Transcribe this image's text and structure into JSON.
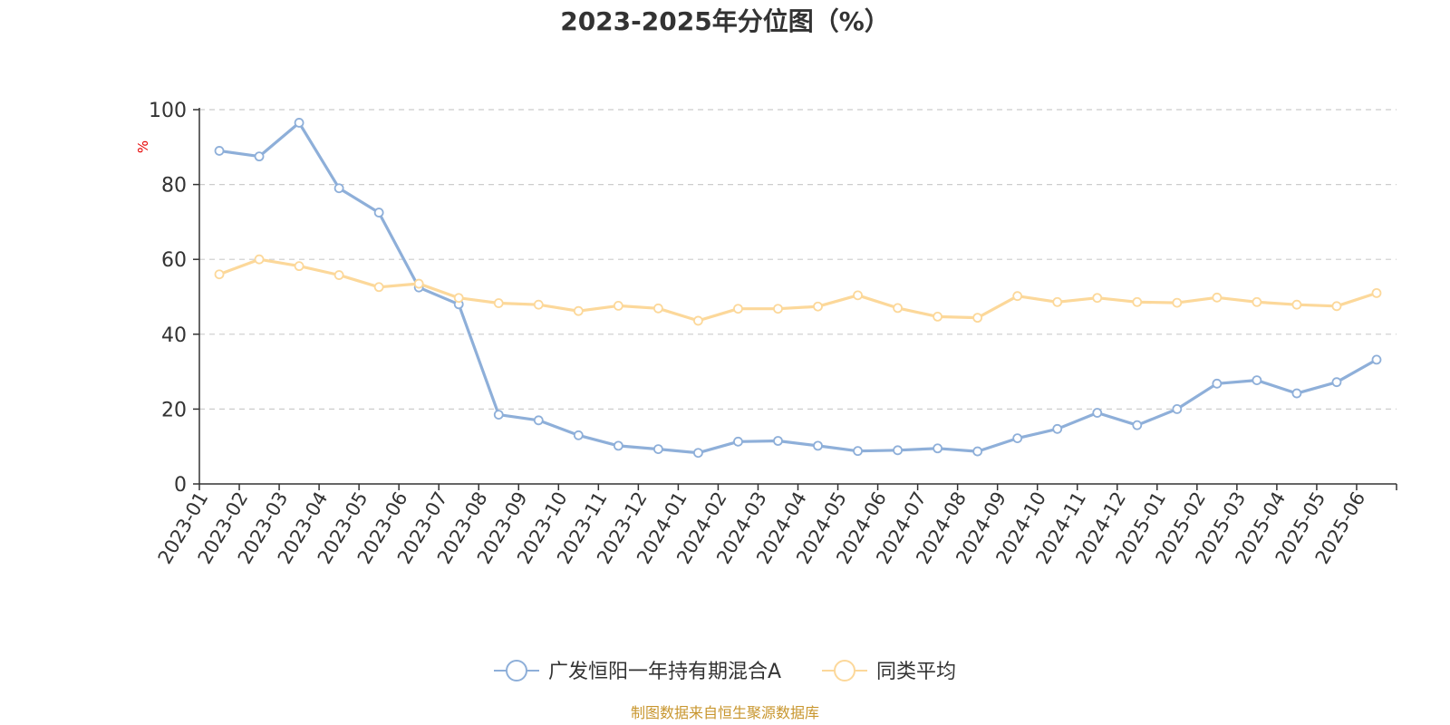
{
  "chart_data": {
    "type": "line",
    "title": "2023-2025年分位图（%）",
    "ylabel": "%",
    "ylim": [
      0,
      100
    ],
    "yticks": [
      "0",
      "20",
      "40",
      "60",
      "80",
      "100"
    ],
    "grid": true,
    "legend_position": "bottom",
    "categories": [
      "2023-01",
      "2023-02",
      "2023-03",
      "2023-04",
      "2023-05",
      "2023-06",
      "2023-07",
      "2023-08",
      "2023-09",
      "2023-10",
      "2023-11",
      "2023-12",
      "2024-01",
      "2024-02",
      "2024-03",
      "2024-04",
      "2024-05",
      "2024-06",
      "2024-07",
      "2024-08",
      "2024-09",
      "2024-10",
      "2024-11",
      "2024-12",
      "2025-01",
      "2025-02",
      "2025-03",
      "2025-04",
      "2025-05",
      "2025-06"
    ],
    "series": [
      {
        "name": "广发恒阳一年持有期混合A",
        "color": "#8eafd9",
        "values": [
          89,
          87.5,
          96.5,
          79,
          72.5,
          52.5,
          48,
          18.5,
          17,
          13,
          10.2,
          9.3,
          8.3,
          11.3,
          11.5,
          10.2,
          8.8,
          9,
          9.5,
          8.7,
          12.2,
          14.7,
          19,
          15.7,
          20,
          26.8,
          27.7,
          24.2,
          27.2,
          33.2
        ]
      },
      {
        "name": "同类平均",
        "color": "#fcd89a",
        "values": [
          56,
          60,
          58.2,
          55.8,
          52.6,
          53.5,
          49.7,
          48.3,
          47.9,
          46.2,
          47.6,
          46.9,
          43.6,
          46.8,
          46.8,
          47.4,
          50.4,
          47,
          44.7,
          44.4,
          50.2,
          48.6,
          49.7,
          48.6,
          48.4,
          49.8,
          48.6,
          47.9,
          47.5,
          51
        ]
      }
    ]
  },
  "legend": {
    "items": [
      {
        "label": "广发恒阳一年持有期混合A",
        "color": "#8eafd9"
      },
      {
        "label": "同类平均",
        "color": "#fcd89a"
      }
    ]
  },
  "colors": {
    "axis": "#333333",
    "grid": "#cccccc",
    "unit": "#e60000",
    "source": "#c8962e"
  },
  "footer": {
    "source": "制图数据来自恒生聚源数据库"
  }
}
